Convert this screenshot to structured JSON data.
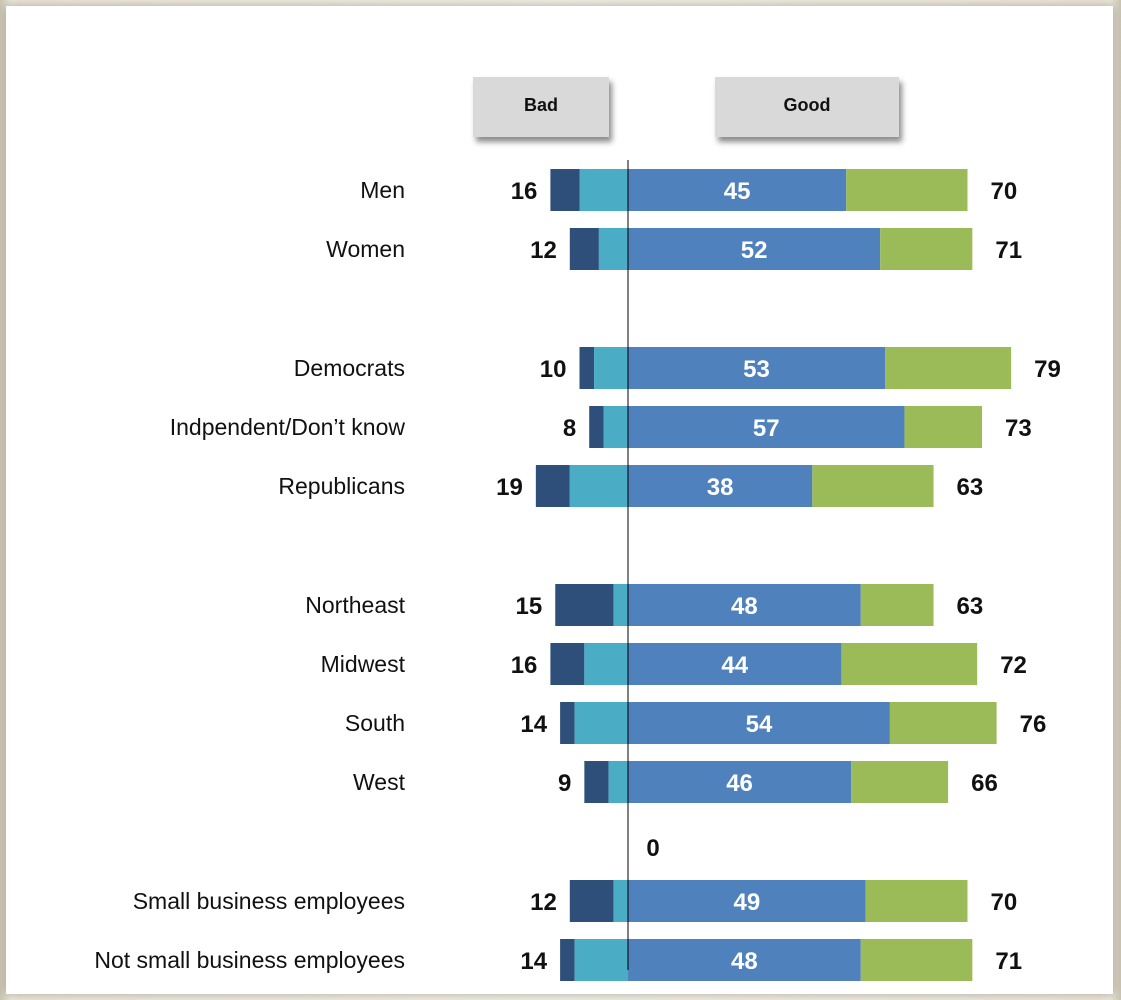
{
  "chart_data": {
    "type": "bar",
    "layout": "diverging stacked horizontal",
    "headers": {
      "bad": "Bad",
      "good": "Good"
    },
    "groups": [
      {
        "rows": [
          {
            "label": "Men",
            "bad_total": 16,
            "bad_strong": 6,
            "good_strong": 45,
            "good_total": 70
          },
          {
            "label": "Women",
            "bad_total": 12,
            "bad_strong": 6,
            "good_strong": 52,
            "good_total": 71
          }
        ]
      },
      {
        "rows": [
          {
            "label": "Democrats",
            "bad_total": 10,
            "bad_strong": 3,
            "good_strong": 53,
            "good_total": 79
          },
          {
            "label": "Indpendent/Don’t know",
            "bad_total": 8,
            "bad_strong": 3,
            "good_strong": 57,
            "good_total": 73
          },
          {
            "label": "Republicans",
            "bad_total": 19,
            "bad_strong": 7,
            "good_strong": 38,
            "good_total": 63
          }
        ]
      },
      {
        "rows": [
          {
            "label": "Northeast",
            "bad_total": 15,
            "bad_strong": 12,
            "good_strong": 48,
            "good_total": 63
          },
          {
            "label": "Midwest",
            "bad_total": 16,
            "bad_strong": 7,
            "good_strong": 44,
            "good_total": 72
          },
          {
            "label": "South",
            "bad_total": 14,
            "bad_strong": 3,
            "good_strong": 54,
            "good_total": 76
          },
          {
            "label": "West",
            "bad_total": 9,
            "bad_strong": 5,
            "good_strong": 46,
            "good_total": 66
          }
        ]
      },
      {
        "rows": [
          {
            "label": "Small business employees",
            "bad_total": 12,
            "bad_strong": 9,
            "good_strong": 49,
            "good_total": 70
          },
          {
            "label": "Not small business employees",
            "bad_total": 14,
            "bad_strong": 3,
            "good_strong": 48,
            "good_total": 71
          }
        ]
      }
    ],
    "stray_label": "0",
    "colors": {
      "bad_strong": "#2e4f7a",
      "bad_other": "#4bacc6",
      "good_strong": "#4f81bd",
      "good_other": "#9bbb59",
      "header_box": "#d9d9d9",
      "zero_line": "#000000"
    }
  }
}
